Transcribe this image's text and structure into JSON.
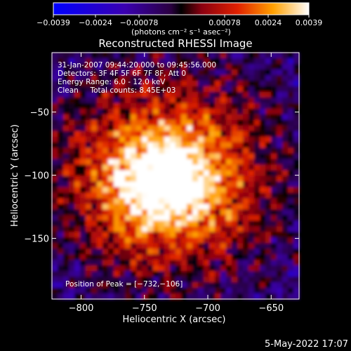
{
  "chart_data": {
    "type": "heatmap",
    "title": "Reconstructed RHESSI Image",
    "xlabel": "Heliocentric X (arcsec)",
    "ylabel": "Heliocentric Y (arcsec)",
    "xlim": [
      -823,
      -628
    ],
    "ylim": [
      -198,
      -3
    ],
    "x_ticks": [
      -800,
      -750,
      -700,
      -650
    ],
    "y_ticks": [
      -50,
      -100,
      -150
    ],
    "x_tick_labels": [
      "−800",
      "−750",
      "−700",
      "−650"
    ],
    "y_tick_labels": [
      "−50",
      "−100",
      "−150"
    ],
    "colorbar": {
      "ticks": [
        -0.0039,
        -0.0024,
        -0.00078,
        0.00078,
        0.0024,
        0.0039
      ],
      "tick_labels": [
        "−0.0039",
        "−0.0024",
        "−0.00078",
        "0.00078",
        "0.0024",
        "0.0039"
      ],
      "unit_label": "(photons cm⁻² s⁻¹ asec⁻²)",
      "range": [
        -0.0039,
        0.0039
      ]
    },
    "annotations": {
      "time_range": "31-Jan-2007 09:44:20.000 to 09:45:56.000",
      "detectors": "Detectors: 3F 4F 5F 6F 7F 8F, Att 0",
      "energy": "Energy Range: 6.0 - 12.0 keV",
      "clean": "Clean     Total counts: 8.45E+03",
      "peak": "Position of Peak = [−732,−106]"
    },
    "peak_position": [
      -732,
      -106
    ],
    "peak_value": 0.0039,
    "grid": false
  },
  "footer_date": "5-May-2022 17:07"
}
